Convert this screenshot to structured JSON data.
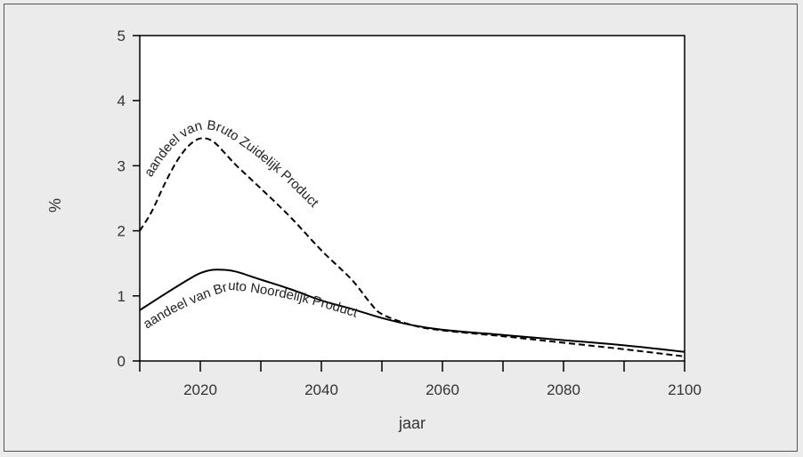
{
  "chart_data": {
    "type": "line",
    "xlabel": "jaar",
    "ylabel": "%",
    "xlim": [
      2010,
      2100
    ],
    "ylim": [
      0,
      5
    ],
    "xticks": [
      2020,
      2040,
      2060,
      2080,
      2100
    ],
    "yticks": [
      0,
      1,
      2,
      3,
      4,
      5
    ],
    "grid": false,
    "series": [
      {
        "name": "aandeel van Bruto Zuidelijk Product",
        "style": "dashed",
        "color": "#000000",
        "x": [
          2010,
          2012,
          2014,
          2016,
          2018,
          2020,
          2022,
          2024,
          2026,
          2030,
          2035,
          2040,
          2045,
          2048,
          2050,
          2055,
          2060,
          2070,
          2080,
          2090,
          2100
        ],
        "y": [
          2.0,
          2.3,
          2.7,
          3.05,
          3.3,
          3.42,
          3.38,
          3.2,
          3.0,
          2.65,
          2.2,
          1.7,
          1.25,
          0.9,
          0.72,
          0.55,
          0.47,
          0.38,
          0.28,
          0.18,
          0.07
        ]
      },
      {
        "name": "aandeel van Bruto Noordelijk Product",
        "style": "solid",
        "color": "#000000",
        "x": [
          2010,
          2014,
          2018,
          2020,
          2022,
          2024,
          2026,
          2030,
          2035,
          2040,
          2045,
          2050,
          2055,
          2060,
          2070,
          2080,
          2090,
          2100
        ],
        "y": [
          0.78,
          1.02,
          1.25,
          1.35,
          1.4,
          1.4,
          1.37,
          1.25,
          1.1,
          0.93,
          0.8,
          0.66,
          0.55,
          0.48,
          0.4,
          0.32,
          0.24,
          0.14
        ]
      }
    ],
    "annotations": [
      {
        "text": "aandeel van Bruto Zuidelijk Product",
        "series": 0
      },
      {
        "text": "aandeel van Bruto Noordelijk Product",
        "series": 1
      }
    ]
  }
}
